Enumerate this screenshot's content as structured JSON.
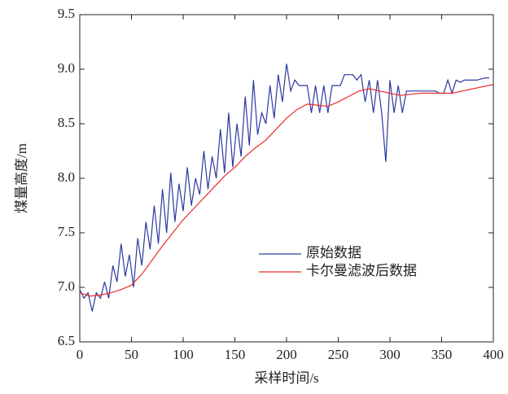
{
  "chart_data": {
    "type": "line",
    "xlabel": "采样时间/s",
    "ylabel": "煤量高度/m",
    "xlim": [
      0,
      400
    ],
    "xticks": [
      0,
      50,
      100,
      150,
      200,
      250,
      300,
      350,
      400
    ],
    "ylim": [
      6.5,
      9.5
    ],
    "yticks": [
      6.5,
      {
        "value": 7,
        "label": "7.0"
      },
      7.5,
      {
        "value": 8,
        "label": "8.0"
      },
      8.5,
      {
        "value": 9,
        "label": "9.0"
      },
      9.5
    ],
    "legend": "right",
    "grid": false,
    "series": [
      {
        "name": "原始数据",
        "color": "#2b3a9e",
        "x": [
          0,
          4,
          8,
          12,
          16,
          20,
          24,
          28,
          32,
          36,
          40,
          44,
          48,
          52,
          56,
          60,
          64,
          68,
          72,
          76,
          80,
          84,
          88,
          92,
          96,
          100,
          104,
          108,
          112,
          116,
          120,
          124,
          128,
          132,
          136,
          140,
          144,
          148,
          152,
          156,
          160,
          164,
          168,
          172,
          176,
          180,
          184,
          188,
          192,
          196,
          200,
          204,
          208,
          212,
          216,
          220,
          224,
          228,
          232,
          236,
          240,
          244,
          248,
          252,
          256,
          260,
          264,
          268,
          272,
          276,
          280,
          284,
          288,
          292,
          296,
          300,
          304,
          308,
          312,
          316,
          320,
          324,
          328,
          332,
          336,
          340,
          344,
          348,
          352,
          356,
          360,
          364,
          368,
          372,
          376,
          380,
          384,
          388,
          392,
          396
        ],
        "values": [
          6.98,
          6.9,
          6.95,
          6.78,
          6.95,
          6.9,
          7.05,
          6.9,
          7.2,
          7.05,
          7.4,
          7.1,
          7.3,
          7.0,
          7.45,
          7.2,
          7.6,
          7.35,
          7.75,
          7.4,
          7.9,
          7.5,
          8.05,
          7.6,
          7.95,
          7.7,
          8.1,
          7.75,
          8.0,
          7.85,
          8.25,
          7.9,
          8.2,
          8.0,
          8.45,
          8.05,
          8.6,
          8.1,
          8.5,
          8.2,
          8.75,
          8.3,
          8.9,
          8.4,
          8.6,
          8.5,
          8.85,
          8.55,
          8.95,
          8.7,
          9.05,
          8.8,
          8.9,
          8.85,
          8.85,
          8.85,
          8.6,
          8.85,
          8.6,
          8.85,
          8.6,
          8.85,
          8.85,
          8.85,
          8.95,
          8.95,
          8.95,
          8.9,
          8.95,
          8.7,
          8.9,
          8.6,
          8.9,
          8.6,
          8.15,
          8.9,
          8.6,
          8.85,
          8.6,
          8.8,
          8.8,
          8.8,
          8.8,
          8.8,
          8.8,
          8.8,
          8.8,
          8.78,
          8.78,
          8.9,
          8.78,
          8.9,
          8.88,
          8.9,
          8.9,
          8.9,
          8.9,
          8.91,
          8.92,
          8.92
        ]
      },
      {
        "name": "卡尔曼滤波后数据",
        "color": "#ee2a2a",
        "x": [
          0,
          10,
          20,
          30,
          40,
          50,
          60,
          70,
          80,
          90,
          100,
          110,
          120,
          130,
          140,
          150,
          160,
          170,
          180,
          190,
          200,
          210,
          220,
          230,
          240,
          250,
          260,
          270,
          280,
          290,
          300,
          310,
          320,
          330,
          340,
          350,
          360,
          370,
          380,
          390,
          400
        ],
        "values": [
          6.95,
          6.92,
          6.93,
          6.95,
          6.98,
          7.02,
          7.12,
          7.25,
          7.38,
          7.5,
          7.62,
          7.72,
          7.82,
          7.92,
          8.02,
          8.1,
          8.2,
          8.28,
          8.35,
          8.45,
          8.55,
          8.63,
          8.68,
          8.67,
          8.66,
          8.7,
          8.75,
          8.8,
          8.82,
          8.8,
          8.78,
          8.76,
          8.77,
          8.78,
          8.78,
          8.78,
          8.78,
          8.8,
          8.82,
          8.84,
          8.86
        ]
      }
    ]
  }
}
